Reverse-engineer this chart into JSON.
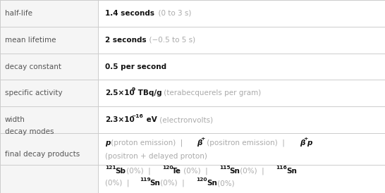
{
  "figsize": [
    5.46,
    2.74
  ],
  "dpi": 100,
  "bg_outer": "#e8e8e8",
  "bg_col1": "#f5f5f5",
  "bg_col2": "#ffffff",
  "border_color": "#cccccc",
  "label_color": "#555555",
  "bold_color": "#111111",
  "gray_color": "#aaaaaa",
  "col_div": 0.255,
  "font_size": 7.5,
  "row_tops": [
    1.0,
    0.862,
    0.724,
    0.586,
    0.448,
    0.31,
    0.145,
    0.0
  ],
  "labels": [
    "half-life",
    "mean lifetime",
    "decay constant",
    "specific activity",
    "width",
    "decay modes",
    "final decay products"
  ],
  "label_valign_adjust": [
    0,
    0,
    0,
    0,
    0,
    0.09,
    0.13
  ]
}
